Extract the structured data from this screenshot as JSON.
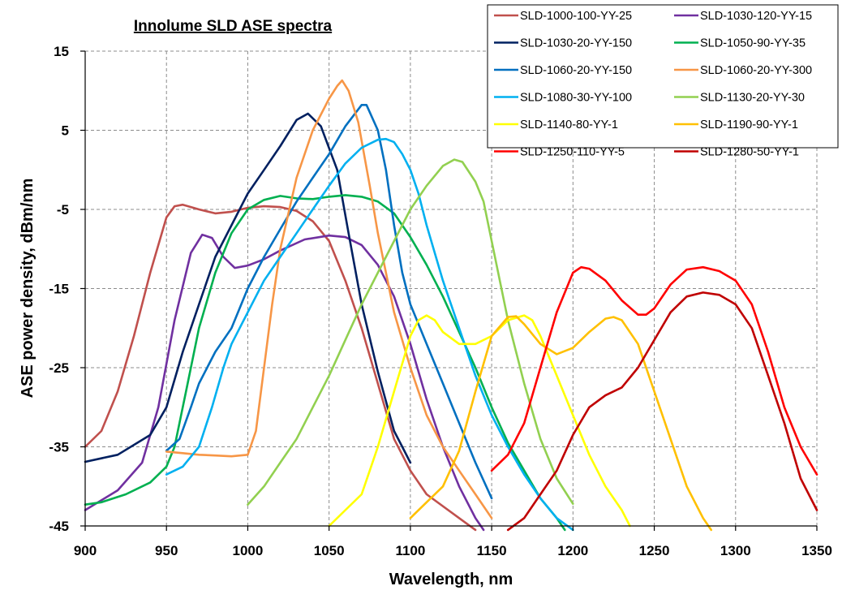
{
  "chart_data": {
    "type": "line",
    "title": "Innolume SLD ASE spectra",
    "xlabel": "Wavelength, nm",
    "ylabel": "ASE power density, dBm/nm",
    "xlim": [
      900,
      1350
    ],
    "ylim": [
      -45,
      15
    ],
    "x_ticks": [
      900,
      950,
      1000,
      1050,
      1100,
      1150,
      1200,
      1250,
      1300,
      1350
    ],
    "y_ticks": [
      15,
      5,
      -5,
      -15,
      -25,
      -35,
      -45
    ],
    "grid": true,
    "legend_position": "top-right",
    "series": [
      {
        "name": "SLD-1000-100-YY-25",
        "color": "#c0504d",
        "points": [
          [
            900,
            -35
          ],
          [
            910,
            -33
          ],
          [
            920,
            -28
          ],
          [
            930,
            -21
          ],
          [
            940,
            -13
          ],
          [
            950,
            -6
          ],
          [
            955,
            -4.6
          ],
          [
            960,
            -4.4
          ],
          [
            970,
            -5
          ],
          [
            980,
            -5.5
          ],
          [
            990,
            -5.3
          ],
          [
            1000,
            -4.8
          ],
          [
            1010,
            -4.6
          ],
          [
            1020,
            -4.7
          ],
          [
            1030,
            -5.2
          ],
          [
            1040,
            -6.5
          ],
          [
            1050,
            -9
          ],
          [
            1060,
            -14
          ],
          [
            1070,
            -20
          ],
          [
            1080,
            -27
          ],
          [
            1090,
            -34
          ],
          [
            1100,
            -38
          ],
          [
            1110,
            -41
          ],
          [
            1130,
            -44
          ],
          [
            1140,
            -45.5
          ]
        ]
      },
      {
        "name": "SLD-1030-120-YY-15",
        "color": "#7030a0",
        "points": [
          [
            900,
            -43
          ],
          [
            920,
            -40.5
          ],
          [
            935,
            -37
          ],
          [
            945,
            -30
          ],
          [
            955,
            -19
          ],
          [
            965,
            -10.5
          ],
          [
            972,
            -8.2
          ],
          [
            978,
            -8.6
          ],
          [
            985,
            -11
          ],
          [
            992,
            -12.4
          ],
          [
            1000,
            -12.1
          ],
          [
            1010,
            -11.3
          ],
          [
            1020,
            -10.2
          ],
          [
            1035,
            -8.8
          ],
          [
            1050,
            -8.3
          ],
          [
            1060,
            -8.5
          ],
          [
            1070,
            -9.5
          ],
          [
            1080,
            -12
          ],
          [
            1090,
            -16
          ],
          [
            1100,
            -22
          ],
          [
            1110,
            -29
          ],
          [
            1120,
            -35
          ],
          [
            1130,
            -40
          ],
          [
            1140,
            -44
          ],
          [
            1145,
            -45.5
          ]
        ]
      },
      {
        "name": "SLD-1030-20-YY-150",
        "color": "#002060",
        "points": [
          [
            900,
            -36.9
          ],
          [
            920,
            -36
          ],
          [
            940,
            -33.5
          ],
          [
            950,
            -30
          ],
          [
            960,
            -23
          ],
          [
            970,
            -17
          ],
          [
            980,
            -11
          ],
          [
            990,
            -7
          ],
          [
            1000,
            -3
          ],
          [
            1010,
            0
          ],
          [
            1020,
            3
          ],
          [
            1030,
            6.3
          ],
          [
            1037,
            7.1
          ],
          [
            1045,
            5.5
          ],
          [
            1055,
            0
          ],
          [
            1062,
            -8
          ],
          [
            1070,
            -17
          ],
          [
            1080,
            -25.5
          ],
          [
            1090,
            -33
          ],
          [
            1095,
            -35
          ],
          [
            1100,
            -37
          ]
        ]
      },
      {
        "name": "SLD-1050-90-YY-35",
        "color": "#00b050",
        "points": [
          [
            900,
            -42.3
          ],
          [
            910,
            -42
          ],
          [
            925,
            -41
          ],
          [
            940,
            -39.5
          ],
          [
            950,
            -37.5
          ],
          [
            955,
            -35
          ],
          [
            962,
            -28
          ],
          [
            970,
            -20
          ],
          [
            980,
            -13
          ],
          [
            990,
            -8
          ],
          [
            1000,
            -5
          ],
          [
            1010,
            -3.8
          ],
          [
            1020,
            -3.3
          ],
          [
            1030,
            -3.6
          ],
          [
            1040,
            -3.7
          ],
          [
            1050,
            -3.4
          ],
          [
            1060,
            -3.2
          ],
          [
            1070,
            -3.4
          ],
          [
            1080,
            -4
          ],
          [
            1090,
            -5.5
          ],
          [
            1100,
            -8.5
          ],
          [
            1110,
            -12
          ],
          [
            1120,
            -16
          ],
          [
            1130,
            -20.5
          ],
          [
            1140,
            -25
          ],
          [
            1150,
            -30
          ],
          [
            1160,
            -34.5
          ],
          [
            1170,
            -38
          ],
          [
            1180,
            -41.5
          ],
          [
            1190,
            -44
          ],
          [
            1195,
            -45.5
          ]
        ]
      },
      {
        "name": "SLD-1060-20-YY-150",
        "color": "#0070c0",
        "points": [
          [
            950,
            -35.5
          ],
          [
            958,
            -34
          ],
          [
            965,
            -30
          ],
          [
            970,
            -27
          ],
          [
            980,
            -23
          ],
          [
            990,
            -20
          ],
          [
            1000,
            -15
          ],
          [
            1010,
            -11
          ],
          [
            1020,
            -7.5
          ],
          [
            1030,
            -4
          ],
          [
            1040,
            -1
          ],
          [
            1050,
            2
          ],
          [
            1060,
            5.5
          ],
          [
            1070,
            8.2
          ],
          [
            1073,
            8.2
          ],
          [
            1080,
            5
          ],
          [
            1085,
            0
          ],
          [
            1090,
            -7
          ],
          [
            1095,
            -13
          ],
          [
            1100,
            -17
          ],
          [
            1110,
            -22
          ],
          [
            1120,
            -27
          ],
          [
            1130,
            -32
          ],
          [
            1140,
            -37
          ],
          [
            1150,
            -41.5
          ]
        ]
      },
      {
        "name": "SLD-1060-20-YY-300",
        "color": "#f79646",
        "points": [
          [
            950,
            -35.6
          ],
          [
            960,
            -35.8
          ],
          [
            970,
            -36
          ],
          [
            980,
            -36.1
          ],
          [
            990,
            -36.2
          ],
          [
            1000,
            -36
          ],
          [
            1005,
            -33
          ],
          [
            1010,
            -25
          ],
          [
            1015,
            -17
          ],
          [
            1020,
            -10
          ],
          [
            1030,
            -1
          ],
          [
            1040,
            5
          ],
          [
            1050,
            9
          ],
          [
            1055,
            10.6
          ],
          [
            1058,
            11.3
          ],
          [
            1062,
            10
          ],
          [
            1068,
            6
          ],
          [
            1075,
            -2
          ],
          [
            1080,
            -8
          ],
          [
            1090,
            -18
          ],
          [
            1100,
            -25
          ],
          [
            1110,
            -31
          ],
          [
            1120,
            -35
          ],
          [
            1130,
            -38
          ],
          [
            1140,
            -41
          ],
          [
            1150,
            -44
          ]
        ]
      },
      {
        "name": "SLD-1080-30-YY-100",
        "color": "#00b0f0",
        "points": [
          [
            950,
            -38.5
          ],
          [
            960,
            -37.5
          ],
          [
            970,
            -35
          ],
          [
            978,
            -30
          ],
          [
            985,
            -25
          ],
          [
            990,
            -22
          ],
          [
            1000,
            -18
          ],
          [
            1010,
            -14
          ],
          [
            1020,
            -11
          ],
          [
            1030,
            -8
          ],
          [
            1040,
            -5
          ],
          [
            1050,
            -2
          ],
          [
            1060,
            0.8
          ],
          [
            1070,
            2.8
          ],
          [
            1080,
            3.8
          ],
          [
            1085,
            3.9
          ],
          [
            1090,
            3.5
          ],
          [
            1095,
            2
          ],
          [
            1100,
            0
          ],
          [
            1105,
            -3
          ],
          [
            1110,
            -7
          ],
          [
            1120,
            -14
          ],
          [
            1130,
            -20
          ],
          [
            1140,
            -26
          ],
          [
            1150,
            -31
          ],
          [
            1160,
            -35
          ],
          [
            1170,
            -38.5
          ],
          [
            1180,
            -41.5
          ],
          [
            1190,
            -44
          ],
          [
            1200,
            -45.5
          ]
        ]
      },
      {
        "name": "SLD-1130-20-YY-30",
        "color": "#92d050",
        "points": [
          [
            1000,
            -42.3
          ],
          [
            1010,
            -40
          ],
          [
            1020,
            -37
          ],
          [
            1030,
            -34
          ],
          [
            1040,
            -30
          ],
          [
            1050,
            -26
          ],
          [
            1060,
            -21.5
          ],
          [
            1070,
            -17
          ],
          [
            1080,
            -13
          ],
          [
            1090,
            -9
          ],
          [
            1100,
            -5
          ],
          [
            1110,
            -2
          ],
          [
            1120,
            0.5
          ],
          [
            1127,
            1.3
          ],
          [
            1132,
            1
          ],
          [
            1140,
            -1.5
          ],
          [
            1145,
            -4
          ],
          [
            1150,
            -9
          ],
          [
            1160,
            -19
          ],
          [
            1170,
            -27
          ],
          [
            1180,
            -34
          ],
          [
            1190,
            -39
          ],
          [
            1200,
            -42.2
          ]
        ]
      },
      {
        "name": "SLD-1140-80-YY-1",
        "color": "#ffff00",
        "points": [
          [
            1050,
            -45
          ],
          [
            1060,
            -43
          ],
          [
            1070,
            -41
          ],
          [
            1075,
            -38
          ],
          [
            1080,
            -35
          ],
          [
            1090,
            -28
          ],
          [
            1100,
            -21
          ],
          [
            1105,
            -19
          ],
          [
            1110,
            -18.4
          ],
          [
            1115,
            -19
          ],
          [
            1120,
            -20.5
          ],
          [
            1130,
            -22
          ],
          [
            1140,
            -22
          ],
          [
            1150,
            -21
          ],
          [
            1160,
            -19
          ],
          [
            1170,
            -18.4
          ],
          [
            1175,
            -19
          ],
          [
            1180,
            -21
          ],
          [
            1190,
            -26
          ],
          [
            1200,
            -31
          ],
          [
            1210,
            -36
          ],
          [
            1220,
            -40
          ],
          [
            1230,
            -43
          ],
          [
            1235,
            -45
          ]
        ]
      },
      {
        "name": "SLD-1190-90-YY-1",
        "color": "#ffc000",
        "points": [
          [
            1100,
            -44
          ],
          [
            1110,
            -42
          ],
          [
            1120,
            -40
          ],
          [
            1130,
            -35.5
          ],
          [
            1140,
            -28
          ],
          [
            1150,
            -21
          ],
          [
            1160,
            -18.6
          ],
          [
            1165,
            -18.5
          ],
          [
            1170,
            -19.5
          ],
          [
            1180,
            -22
          ],
          [
            1190,
            -23.3
          ],
          [
            1200,
            -22.5
          ],
          [
            1210,
            -20.5
          ],
          [
            1220,
            -18.8
          ],
          [
            1225,
            -18.6
          ],
          [
            1230,
            -19
          ],
          [
            1240,
            -22
          ],
          [
            1250,
            -28
          ],
          [
            1260,
            -34
          ],
          [
            1270,
            -40
          ],
          [
            1280,
            -44
          ],
          [
            1285,
            -45.5
          ]
        ]
      },
      {
        "name": "SLD-1250-110-YY-5",
        "color": "#ff0000",
        "points": [
          [
            1150,
            -38
          ],
          [
            1160,
            -36
          ],
          [
            1170,
            -32
          ],
          [
            1180,
            -25
          ],
          [
            1190,
            -18
          ],
          [
            1200,
            -13
          ],
          [
            1205,
            -12.3
          ],
          [
            1210,
            -12.5
          ],
          [
            1220,
            -14
          ],
          [
            1230,
            -16.5
          ],
          [
            1240,
            -18.3
          ],
          [
            1245,
            -18.3
          ],
          [
            1250,
            -17.5
          ],
          [
            1260,
            -14.5
          ],
          [
            1270,
            -12.6
          ],
          [
            1280,
            -12.3
          ],
          [
            1290,
            -12.8
          ],
          [
            1300,
            -14
          ],
          [
            1310,
            -17
          ],
          [
            1320,
            -23
          ],
          [
            1330,
            -30
          ],
          [
            1340,
            -35
          ],
          [
            1350,
            -38.5
          ]
        ]
      },
      {
        "name": "SLD-1280-50-YY-1",
        "color": "#c00000",
        "points": [
          [
            1160,
            -45.5
          ],
          [
            1170,
            -44
          ],
          [
            1180,
            -41
          ],
          [
            1190,
            -38
          ],
          [
            1200,
            -33.5
          ],
          [
            1210,
            -30
          ],
          [
            1220,
            -28.5
          ],
          [
            1230,
            -27.5
          ],
          [
            1240,
            -25
          ],
          [
            1250,
            -21.5
          ],
          [
            1260,
            -18
          ],
          [
            1270,
            -16
          ],
          [
            1280,
            -15.5
          ],
          [
            1290,
            -15.8
          ],
          [
            1300,
            -17
          ],
          [
            1310,
            -20
          ],
          [
            1320,
            -26
          ],
          [
            1330,
            -32
          ],
          [
            1340,
            -39
          ],
          [
            1350,
            -43
          ]
        ]
      }
    ]
  }
}
